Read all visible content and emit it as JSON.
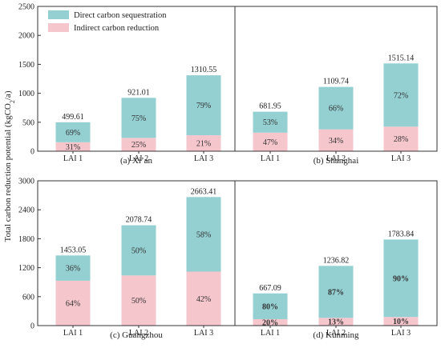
{
  "ylabel": "Total carbon reduction potential (kgCO",
  "ylabel_sub": "2",
  "ylabel_tail": "/a)",
  "legend": [
    {
      "label": "Direct carbon sequestration",
      "color": "#94cfd1"
    },
    {
      "label": "Indirect carbon reduction",
      "color": "#f6c6cd"
    }
  ],
  "chart_data": [
    {
      "type": "bar",
      "stacked": true,
      "title": "(a) Xi’an",
      "categories": [
        "LAI 1",
        "LAI 2",
        "LAI 3"
      ],
      "ylim": [
        0,
        2500
      ],
      "yticks": [
        0,
        500,
        1000,
        1500,
        2000,
        2500
      ],
      "totals": [
        499.61,
        921.01,
        1310.55
      ],
      "totals_label": [
        "499.61",
        "921.01",
        "1310.55"
      ],
      "series": [
        {
          "name": "Indirect carbon reduction",
          "percent": [
            31,
            25,
            21
          ],
          "labels": [
            "31%",
            "25%",
            "21%"
          ]
        },
        {
          "name": "Direct carbon sequestration",
          "percent": [
            69,
            75,
            79
          ],
          "labels": [
            "69%",
            "75%",
            "79%"
          ]
        }
      ]
    },
    {
      "type": "bar",
      "stacked": true,
      "title": "(b) Shanghai",
      "categories": [
        "LAI 1",
        "LAI 2",
        "LAI 3"
      ],
      "ylim": [
        0,
        2500
      ],
      "yticks": [],
      "totals": [
        681.95,
        1109.74,
        1515.14
      ],
      "totals_label": [
        "681.95",
        "1109.74",
        "1515.14"
      ],
      "series": [
        {
          "name": "Indirect carbon reduction",
          "percent": [
            47,
            34,
            28
          ],
          "labels": [
            "47%",
            "34%",
            "28%"
          ]
        },
        {
          "name": "Direct carbon sequestration",
          "percent": [
            53,
            66,
            72
          ],
          "labels": [
            "53%",
            "66%",
            "72%"
          ]
        }
      ]
    },
    {
      "type": "bar",
      "stacked": true,
      "title": "(c) Guangzhou",
      "categories": [
        "LAI 1",
        "LAI 2",
        "LAI 3"
      ],
      "ylim": [
        0,
        3000
      ],
      "yticks": [
        0,
        600,
        1200,
        1800,
        2400,
        3000
      ],
      "totals": [
        1453.05,
        2078.74,
        2663.41
      ],
      "totals_label": [
        "1453.05",
        "2078.74",
        "2663.41"
      ],
      "series": [
        {
          "name": "Indirect carbon reduction",
          "percent": [
            64,
            50,
            42
          ],
          "labels": [
            "64%",
            "50%",
            "42%"
          ]
        },
        {
          "name": "Direct carbon sequestration",
          "percent": [
            36,
            50,
            58
          ],
          "labels": [
            "36%",
            "50%",
            "58%"
          ]
        }
      ]
    },
    {
      "type": "bar",
      "stacked": true,
      "title": "(d) Kunming",
      "categories": [
        "LAI 1",
        "LAI 2",
        "LAI 3"
      ],
      "ylim": [
        0,
        3000
      ],
      "yticks": [],
      "totals": [
        667.09,
        1236.82,
        1783.84
      ],
      "totals_label": [
        "667.09",
        "1236.82",
        "1783.84"
      ],
      "bold_labels": true,
      "series": [
        {
          "name": "Indirect carbon reduction",
          "percent": [
            20,
            13,
            10
          ],
          "labels": [
            "20%",
            "13%",
            "10%"
          ]
        },
        {
          "name": "Direct carbon sequestration",
          "percent": [
            80,
            87,
            90
          ],
          "labels": [
            "80%",
            "87%",
            "90%"
          ]
        }
      ]
    }
  ]
}
